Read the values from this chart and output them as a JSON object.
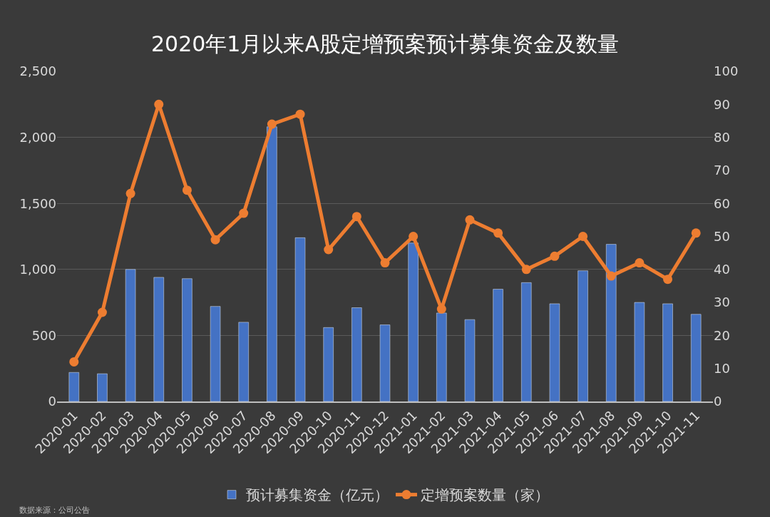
{
  "chart_data": {
    "type": "bar",
    "title": "2020年1月以来A股定增预案预计募集资金及数量",
    "categories": [
      "2020-01",
      "2020-02",
      "2020-03",
      "2020-04",
      "2020-05",
      "2020-06",
      "2020-07",
      "2020-08",
      "2020-09",
      "2020-10",
      "2020-11",
      "2020-12",
      "2021-01",
      "2021-02",
      "2021-03",
      "2021-04",
      "2021-05",
      "2021-06",
      "2021-07",
      "2021-08",
      "2021-09",
      "2021-10",
      "2021-11"
    ],
    "series": [
      {
        "name": "预计募集资金（亿元）",
        "color": "#4472c4",
        "values": [
          220,
          210,
          1000,
          940,
          930,
          720,
          600,
          2080,
          1240,
          560,
          710,
          580,
          1200,
          670,
          620,
          850,
          900,
          740,
          990,
          1190,
          750,
          740,
          660
        ]
      },
      {
        "name": "定增预案数量（家）",
        "type": "line",
        "axis": "y2",
        "color": "#ed7d31",
        "marker": "circle",
        "values": [
          12,
          27,
          63,
          90,
          64,
          49,
          57,
          84,
          87,
          46,
          56,
          42,
          50,
          28,
          55,
          51,
          40,
          44,
          50,
          38,
          42,
          37,
          51
        ]
      }
    ],
    "ylim": [
      0,
      2500
    ],
    "yticks": [
      0,
      {
        "value": 500,
        "label": "500"
      },
      {
        "value": 1000,
        "label": "1,000"
      },
      {
        "value": 1500,
        "label": "1,500"
      },
      {
        "value": 2000,
        "label": "2,000"
      },
      {
        "value": 2500,
        "label": "2,500"
      }
    ],
    "y2lim": [
      0,
      100
    ],
    "y2ticks": [
      0,
      10,
      20,
      30,
      40,
      50,
      60,
      70,
      80,
      90,
      100
    ],
    "grid": "y",
    "legend": "bottom",
    "annotations": [
      "数据来源：公司公告"
    ]
  }
}
